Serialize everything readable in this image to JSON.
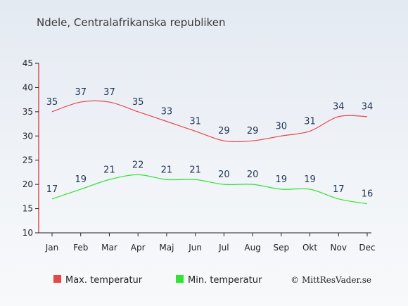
{
  "chart_data": {
    "type": "line",
    "title": "Ndele, Centralafrikanska republiken",
    "categories": [
      "Jan",
      "Feb",
      "Mar",
      "Apr",
      "Maj",
      "Jun",
      "Jul",
      "Aug",
      "Sep",
      "Okt",
      "Nov",
      "Dec"
    ],
    "series": [
      {
        "name": "Max. temperatur",
        "color": "#e8474a",
        "values": [
          35,
          37,
          37,
          35,
          33,
          31,
          29,
          29,
          30,
          31,
          34,
          34
        ]
      },
      {
        "name": "Min. temperatur",
        "color": "#33e333",
        "values": [
          17,
          19,
          21,
          22,
          21,
          21,
          20,
          20,
          19,
          19,
          17,
          16
        ]
      }
    ],
    "ylim": [
      10,
      45
    ],
    "yticks": [
      10,
      15,
      20,
      25,
      30,
      35,
      40,
      45
    ],
    "grid": false,
    "legend": "bottom-left"
  },
  "credit": "© MittResVader.se"
}
